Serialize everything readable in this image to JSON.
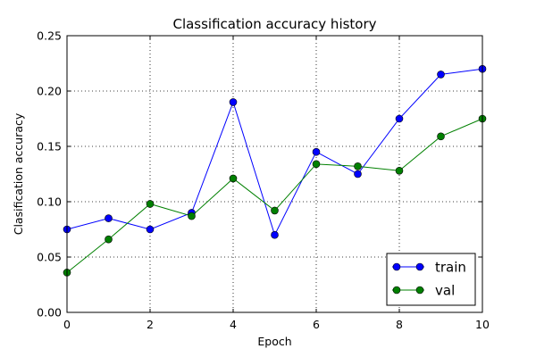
{
  "chart_data": {
    "type": "line",
    "title": "Classification accuracy history",
    "xlabel": "Epoch",
    "ylabel": "Clasification accuracy",
    "xlim": [
      0,
      10
    ],
    "ylim": [
      0,
      0.25
    ],
    "xticks": [
      "0",
      "2",
      "4",
      "6",
      "8",
      "10"
    ],
    "yticks": [
      "0.00",
      "0.05",
      "0.10",
      "0.15",
      "0.20",
      "0.25"
    ],
    "grid": true,
    "grid_style": "dotted",
    "legend_position": "bottom-right",
    "x": [
      0,
      1,
      2,
      3,
      4,
      5,
      6,
      7,
      8,
      9,
      10
    ],
    "series": [
      {
        "name": "train",
        "color": "#0000ff",
        "marker": "circle",
        "values": [
          0.075,
          0.085,
          0.075,
          0.09,
          0.19,
          0.07,
          0.145,
          0.125,
          0.175,
          0.215,
          0.22
        ]
      },
      {
        "name": "val",
        "color": "#008000",
        "marker": "circle",
        "values": [
          0.036,
          0.066,
          0.098,
          0.087,
          0.121,
          0.092,
          0.134,
          0.132,
          0.128,
          0.159,
          0.175
        ]
      }
    ]
  }
}
